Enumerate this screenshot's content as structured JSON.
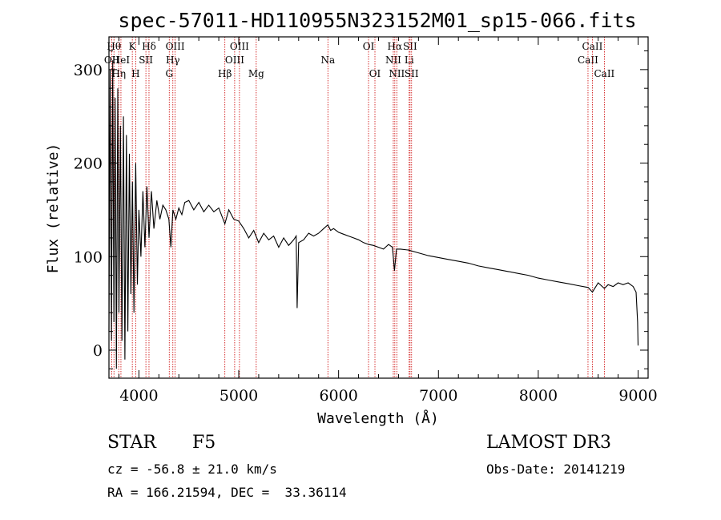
{
  "chart_data": {
    "type": "line",
    "title": "spec-57011-HD110955N323152M01_sp15-066.fits",
    "xlabel": "Wavelength (Å)",
    "ylabel": "Flux (relative)",
    "xlim": [
      3700,
      9100
    ],
    "ylim": [
      -30,
      335
    ],
    "xticks": [
      4000,
      5000,
      6000,
      7000,
      8000,
      9000
    ],
    "yticks": [
      0,
      100,
      200,
      300
    ],
    "grid": false,
    "series": [
      {
        "name": "flux",
        "x": [
          3700,
          3712,
          3725,
          3738,
          3750,
          3762,
          3775,
          3788,
          3800,
          3815,
          3830,
          3845,
          3860,
          3875,
          3889,
          3905,
          3920,
          3935,
          3950,
          3968,
          3985,
          4000,
          4020,
          4040,
          4060,
          4080,
          4101,
          4125,
          4150,
          4180,
          4210,
          4240,
          4270,
          4300,
          4320,
          4340,
          4370,
          4400,
          4430,
          4460,
          4500,
          4550,
          4600,
          4650,
          4700,
          4750,
          4800,
          4861,
          4900,
          4950,
          5000,
          5050,
          5100,
          5150,
          5200,
          5250,
          5300,
          5350,
          5400,
          5450,
          5500,
          5550,
          5575,
          5585,
          5600,
          5650,
          5700,
          5750,
          5800,
          5850,
          5893,
          5920,
          5950,
          6000,
          6050,
          6100,
          6150,
          6200,
          6250,
          6300,
          6350,
          6400,
          6450,
          6500,
          6540,
          6560,
          6580,
          6620,
          6700,
          6800,
          6900,
          7000,
          7100,
          7200,
          7300,
          7400,
          7500,
          7600,
          7700,
          7800,
          7900,
          8000,
          8100,
          8200,
          8300,
          8400,
          8500,
          8542,
          8600,
          8662,
          8700,
          8750,
          8800,
          8850,
          8900,
          8950,
          8980,
          8995,
          9000
        ],
        "y": [
          20,
          300,
          10,
          310,
          30,
          270,
          -20,
          280,
          40,
          240,
          10,
          250,
          -10,
          230,
          20,
          210,
          60,
          180,
          40,
          200,
          70,
          150,
          100,
          170,
          110,
          175,
          120,
          170,
          130,
          160,
          140,
          155,
          150,
          140,
          110,
          150,
          140,
          152,
          145,
          158,
          160,
          150,
          158,
          148,
          155,
          148,
          152,
          135,
          150,
          140,
          138,
          130,
          120,
          128,
          115,
          125,
          118,
          122,
          110,
          120,
          112,
          118,
          122,
          45,
          115,
          118,
          125,
          122,
          125,
          130,
          134,
          128,
          130,
          126,
          124,
          122,
          120,
          118,
          115,
          113,
          112,
          110,
          108,
          113,
          110,
          85,
          108,
          108,
          107,
          104,
          101,
          99,
          97,
          95,
          93,
          90,
          88,
          86,
          84,
          82,
          80,
          77,
          75,
          73,
          71,
          69,
          67,
          62,
          72,
          66,
          70,
          68,
          72,
          70,
          72,
          68,
          62,
          30,
          5
        ]
      }
    ],
    "line_markers": [
      {
        "x": 3750,
        "row": 1,
        "label": "Hθ"
      },
      {
        "x": 3728,
        "row": 2,
        "label": "OII"
      },
      {
        "x": 3798,
        "row": 3,
        "label": "Hη"
      },
      {
        "x": 3820,
        "row": 2,
        "label": "HeI"
      },
      {
        "x": 3934,
        "row": 1,
        "label": "K"
      },
      {
        "x": 3968,
        "row": 3,
        "label": "H"
      },
      {
        "x": 4070,
        "row": 2,
        "label": "SII"
      },
      {
        "x": 4101,
        "row": 1,
        "label": "Hδ"
      },
      {
        "x": 4304,
        "row": 3,
        "label": "G"
      },
      {
        "x": 4340,
        "row": 2,
        "label": "Hγ"
      },
      {
        "x": 4363,
        "row": 1,
        "label": "OIII"
      },
      {
        "x": 4861,
        "row": 3,
        "label": "Hβ"
      },
      {
        "x": 4959,
        "row": 2,
        "label": "OIII"
      },
      {
        "x": 5007,
        "row": 1,
        "label": "OIII"
      },
      {
        "x": 5175,
        "row": 3,
        "label": "Mg"
      },
      {
        "x": 5893,
        "row": 2,
        "label": "Na"
      },
      {
        "x": 6300,
        "row": 1,
        "label": "OI"
      },
      {
        "x": 6364,
        "row": 3,
        "label": "OI"
      },
      {
        "x": 6548,
        "row": 2,
        "label": "NII"
      },
      {
        "x": 6563,
        "row": 1,
        "label": "Hα"
      },
      {
        "x": 6583,
        "row": 3,
        "label": "NII"
      },
      {
        "x": 6707,
        "row": 2,
        "label": "Li"
      },
      {
        "x": 6716,
        "row": 1,
        "label": "SII"
      },
      {
        "x": 6731,
        "row": 3,
        "label": "SII"
      },
      {
        "x": 8498,
        "row": 2,
        "label": "CaII"
      },
      {
        "x": 8542,
        "row": 1,
        "label": "CaII"
      },
      {
        "x": 8662,
        "row": 3,
        "label": "CaII"
      }
    ]
  },
  "info": {
    "class_label": "STAR",
    "subclass": "F5",
    "survey": "LAMOST DR3",
    "redshift": "cz = -56.8 ± 21.0 km/s",
    "obs_date": "Obs-Date: 20141219",
    "coords": "RA = 166.21594, DEC =  33.36114"
  },
  "colors": {
    "spectrum": "#000000",
    "marker_line": "#cc0000",
    "axes": "#000000"
  }
}
